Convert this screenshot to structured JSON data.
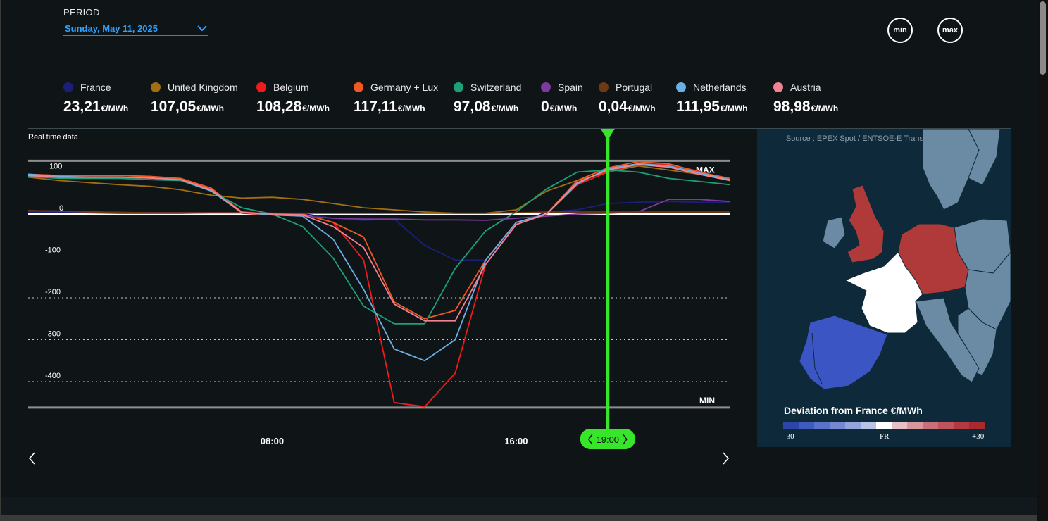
{
  "period": {
    "label": "PERIOD",
    "value": "Sunday, May 11, 2025"
  },
  "buttons": {
    "min": "min",
    "max": "max"
  },
  "legend": [
    {
      "name": "France",
      "value": "23,21",
      "unit": "€/MWh",
      "color": "#1b1f78"
    },
    {
      "name": "United Kingdom",
      "value": "107,05",
      "unit": "€/MWh",
      "color": "#a16e12"
    },
    {
      "name": "Belgium",
      "value": "108,28",
      "unit": "€/MWh",
      "color": "#ee1c1c"
    },
    {
      "name": "Germany + Lux",
      "value": "117,11",
      "unit": "€/MWh",
      "color": "#f05a22"
    },
    {
      "name": "Switzerland",
      "value": "97,08",
      "unit": "€/MWh",
      "color": "#1e9f77"
    },
    {
      "name": "Spain",
      "value": "0",
      "unit": "€/MWh",
      "color": "#7a3a9e"
    },
    {
      "name": "Portugal",
      "value": "0,04",
      "unit": "€/MWh",
      "color": "#6e3a16"
    },
    {
      "name": "Netherlands",
      "value": "111,95",
      "unit": "€/MWh",
      "color": "#6ab0e4"
    },
    {
      "name": "Austria",
      "value": "98,98",
      "unit": "€/MWh",
      "color": "#f08292"
    }
  ],
  "chart_data": {
    "type": "line",
    "title": "Real time data",
    "ylim": [
      -460,
      125
    ],
    "xlim": [
      0,
      23
    ],
    "yticks": [
      100,
      0,
      -100,
      -200,
      -300,
      -400
    ],
    "xticks": [
      {
        "x": 8,
        "label": "08:00"
      },
      {
        "x": 16,
        "label": "16:00"
      }
    ],
    "max_label": "MAX",
    "min_label": "MIN",
    "max_value": 127,
    "min_value": -462,
    "grid": true,
    "series": [
      {
        "name": "France",
        "color": "#1b1f78",
        "x": [
          0,
          1,
          2,
          3,
          4,
          5,
          6,
          7,
          8,
          9,
          10,
          11,
          12,
          13,
          14,
          15,
          16,
          17,
          18,
          19,
          20,
          21,
          22,
          23
        ],
        "y": [
          5,
          4,
          3,
          2,
          2,
          2,
          3,
          3,
          2,
          1,
          -10,
          -15,
          -12,
          -75,
          -110,
          -110,
          -25,
          5,
          10,
          25,
          28,
          30,
          28,
          28
        ]
      },
      {
        "name": "United Kingdom",
        "color": "#a16e12",
        "x": [
          0,
          1,
          2,
          3,
          4,
          5,
          6,
          7,
          8,
          9,
          10,
          11,
          12,
          13,
          14,
          15,
          16,
          17,
          18,
          19,
          20,
          21,
          22,
          23
        ],
        "y": [
          88,
          80,
          75,
          70,
          66,
          58,
          45,
          38,
          40,
          35,
          25,
          15,
          10,
          5,
          2,
          2,
          10,
          55,
          80,
          100,
          115,
          105,
          95,
          85
        ]
      },
      {
        "name": "Belgium",
        "color": "#ee1c1c",
        "x": [
          0,
          1,
          2,
          3,
          4,
          5,
          6,
          7,
          8,
          9,
          10,
          11,
          12,
          13,
          14,
          15,
          16,
          17,
          18,
          19,
          20,
          21,
          22,
          23
        ],
        "y": [
          95,
          92,
          92,
          92,
          90,
          82,
          60,
          2,
          -2,
          0,
          -20,
          -110,
          -450,
          -460,
          -380,
          -120,
          -25,
          0,
          70,
          100,
          120,
          118,
          102,
          80
        ]
      },
      {
        "name": "Germany + Lux",
        "color": "#f05a22",
        "x": [
          0,
          1,
          2,
          3,
          4,
          5,
          6,
          7,
          8,
          9,
          10,
          11,
          12,
          13,
          14,
          15,
          16,
          17,
          18,
          19,
          20,
          21,
          22,
          23
        ],
        "y": [
          95,
          92,
          92,
          92,
          90,
          85,
          62,
          5,
          0,
          0,
          -20,
          -55,
          -210,
          -250,
          -230,
          -110,
          -20,
          0,
          80,
          110,
          125,
          120,
          100,
          85
        ]
      },
      {
        "name": "Switzerland",
        "color": "#1e9f77",
        "x": [
          0,
          1,
          2,
          3,
          4,
          5,
          6,
          7,
          8,
          9,
          10,
          11,
          12,
          13,
          14,
          15,
          16,
          17,
          18,
          19,
          20,
          21,
          22,
          23
        ],
        "y": [
          90,
          85,
          85,
          85,
          82,
          80,
          55,
          15,
          0,
          -30,
          -105,
          -220,
          -262,
          -262,
          -130,
          -40,
          5,
          60,
          100,
          105,
          100,
          85,
          78,
          70
        ]
      },
      {
        "name": "Spain",
        "color": "#7a3a9e",
        "x": [
          0,
          1,
          2,
          3,
          4,
          5,
          6,
          7,
          8,
          9,
          10,
          11,
          12,
          13,
          14,
          15,
          16,
          17,
          18,
          19,
          20,
          21,
          22,
          23
        ],
        "y": [
          8,
          7,
          5,
          4,
          3,
          3,
          3,
          3,
          2,
          -5,
          -10,
          -12,
          -12,
          -14,
          -14,
          -15,
          -10,
          -5,
          0,
          2,
          5,
          35,
          35,
          30
        ]
      },
      {
        "name": "Portugal",
        "color": "#6e3a16",
        "x": [
          0,
          1,
          2,
          3,
          4,
          5,
          6,
          7,
          8,
          9,
          10,
          11,
          12,
          13,
          14,
          15,
          16,
          17,
          18,
          19,
          20,
          21,
          22,
          23
        ],
        "y": [
          8,
          7,
          5,
          4,
          3,
          3,
          3,
          3,
          2,
          2,
          2,
          2,
          2,
          2,
          2,
          2,
          3,
          5,
          5,
          5,
          5,
          5,
          5,
          5
        ]
      },
      {
        "name": "Netherlands",
        "color": "#6ab0e4",
        "x": [
          0,
          1,
          2,
          3,
          4,
          5,
          6,
          7,
          8,
          9,
          10,
          11,
          12,
          13,
          14,
          15,
          16,
          17,
          18,
          19,
          20,
          21,
          22,
          23
        ],
        "y": [
          95,
          90,
          88,
          88,
          86,
          82,
          55,
          4,
          -2,
          -5,
          -60,
          -180,
          -322,
          -350,
          -300,
          -110,
          -20,
          0,
          72,
          108,
          120,
          115,
          98,
          82
        ]
      },
      {
        "name": "Austria",
        "color": "#f08292",
        "x": [
          0,
          1,
          2,
          3,
          4,
          5,
          6,
          7,
          8,
          9,
          10,
          11,
          12,
          13,
          14,
          15,
          16,
          17,
          18,
          19,
          20,
          21,
          22,
          23
        ],
        "y": [
          92,
          88,
          88,
          88,
          86,
          82,
          58,
          4,
          0,
          -2,
          -30,
          -80,
          -215,
          -255,
          -255,
          -120,
          -25,
          0,
          75,
          105,
          118,
          112,
          95,
          80
        ]
      }
    ]
  },
  "cursor": {
    "label": "19:00",
    "x": 19,
    "color": "#37e52a"
  },
  "map": {
    "source": "Source : EPEX Spot / ENTSOE-E Transparency Platform",
    "title": "Deviation from France €/MWh",
    "scale_min": "-30",
    "scale_mid": "FR",
    "scale_max": "+30",
    "scale_colors": [
      "#2c46a8",
      "#3f5bbd",
      "#5a73c8",
      "#7589d2",
      "#93a3db",
      "#b8c3e8",
      "#ffffff",
      "#e6c0c4",
      "#d6979d",
      "#c87079",
      "#bd535c",
      "#b23a40",
      "#a8292e"
    ]
  }
}
